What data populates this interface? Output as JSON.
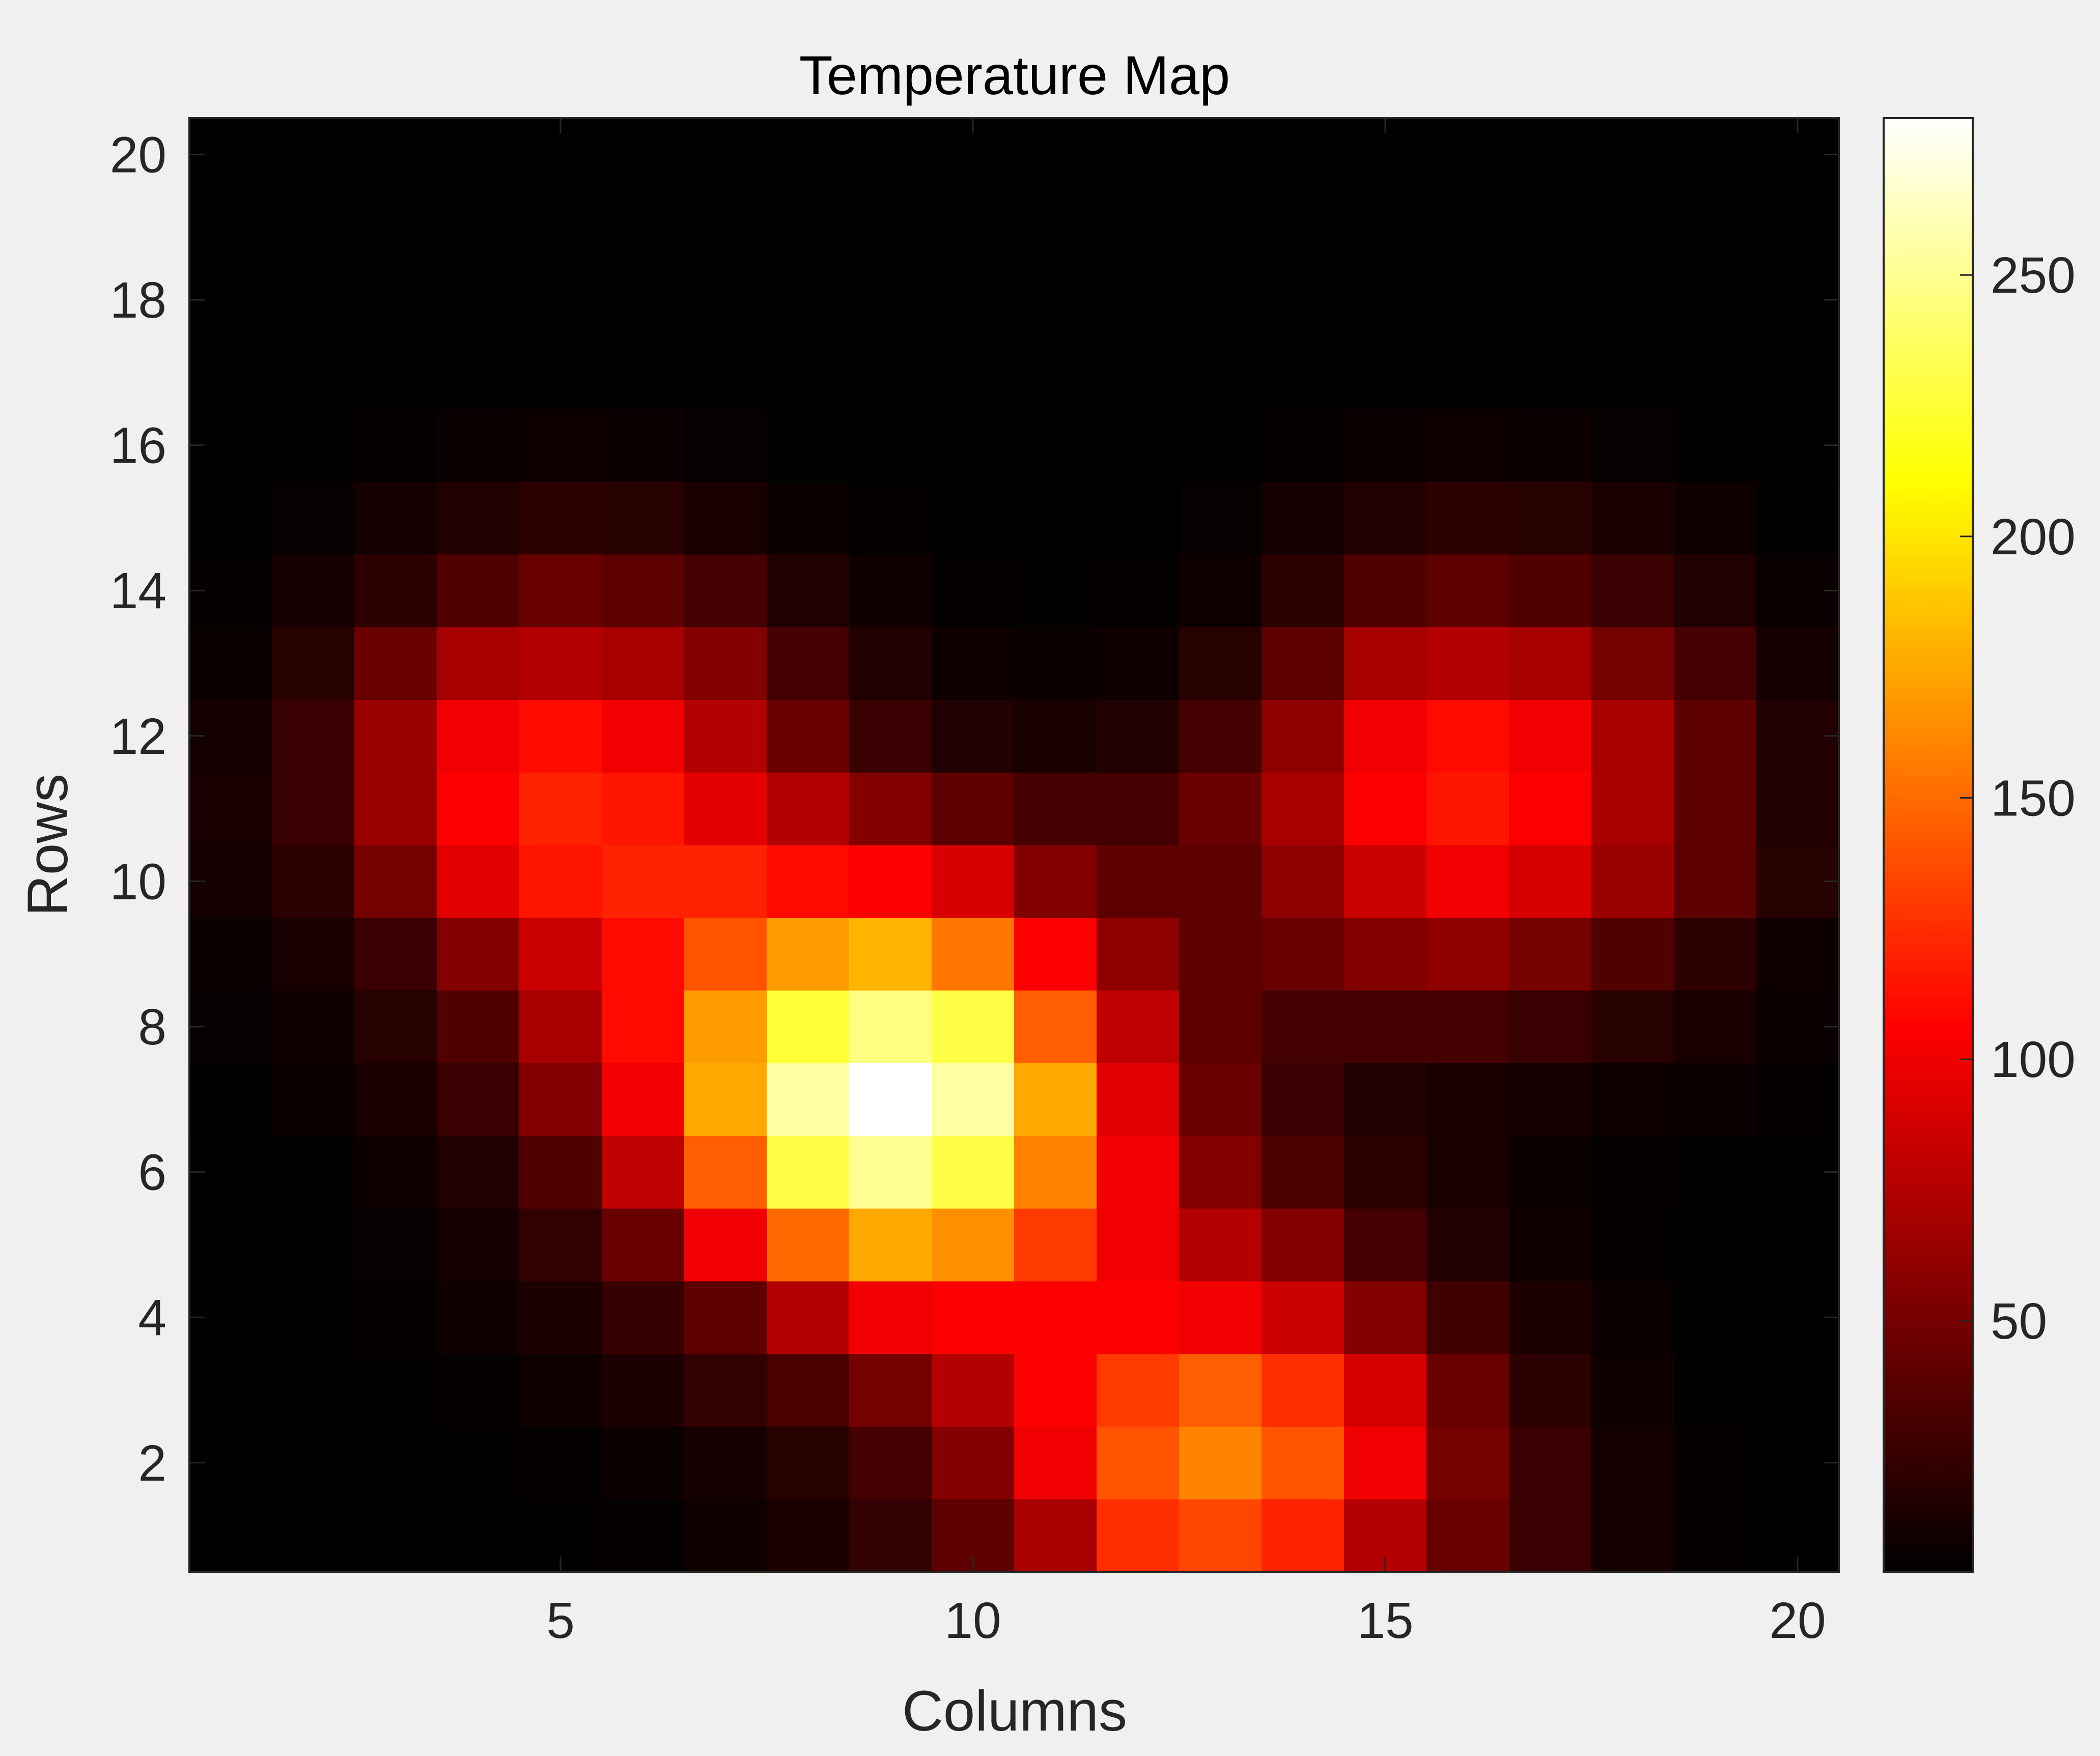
{
  "chart_data": {
    "type": "heatmap",
    "title": "Temperature Map",
    "xlabel": "Columns",
    "ylabel": "Rows",
    "colormap": "hot",
    "x": [
      1,
      2,
      3,
      4,
      5,
      6,
      7,
      8,
      9,
      10,
      11,
      12,
      13,
      14,
      15,
      16,
      17,
      18,
      19,
      20
    ],
    "y": [
      1,
      2,
      3,
      4,
      5,
      6,
      7,
      8,
      9,
      10,
      11,
      12,
      13,
      14,
      15,
      16,
      17,
      18,
      19,
      20
    ],
    "xlim": [
      0.5,
      20.5
    ],
    "ylim": [
      0.5,
      20.5
    ],
    "y_direction": "normal",
    "x_ticks": [
      5,
      10,
      15,
      20
    ],
    "y_ticks": [
      2,
      4,
      6,
      8,
      10,
      12,
      14,
      16,
      18,
      20
    ],
    "color_limits": [
      2,
      280
    ],
    "colorbar_ticks": [
      50,
      100,
      150,
      200,
      250
    ],
    "values": [
      [
        2,
        2,
        2,
        2,
        3,
        4,
        8,
        12,
        22,
        40,
        70,
        125,
        135,
        120,
        75,
        45,
        25,
        10,
        4,
        2
      ],
      [
        2,
        2,
        2,
        3,
        4,
        6,
        10,
        18,
        30,
        55,
        100,
        140,
        160,
        140,
        100,
        50,
        25,
        10,
        4,
        2
      ],
      [
        2,
        2,
        3,
        4,
        8,
        14,
        22,
        32,
        50,
        75,
        105,
        130,
        145,
        125,
        90,
        45,
        20,
        8,
        3,
        2
      ],
      [
        2,
        3,
        4,
        8,
        14,
        24,
        40,
        75,
        100,
        105,
        105,
        105,
        100,
        85,
        55,
        28,
        14,
        6,
        3,
        2
      ],
      [
        2,
        3,
        5,
        10,
        22,
        45,
        100,
        150,
        175,
        165,
        130,
        100,
        75,
        55,
        30,
        16,
        8,
        4,
        2,
        2
      ],
      [
        2,
        3,
        8,
        15,
        35,
        80,
        145,
        230,
        250,
        230,
        160,
        100,
        55,
        32,
        20,
        12,
        6,
        4,
        3,
        2
      ],
      [
        3,
        6,
        12,
        25,
        55,
        100,
        175,
        255,
        280,
        255,
        175,
        95,
        45,
        25,
        15,
        12,
        10,
        8,
        6,
        4
      ],
      [
        5,
        8,
        18,
        35,
        70,
        110,
        170,
        225,
        245,
        230,
        145,
        80,
        40,
        30,
        30,
        30,
        25,
        18,
        12,
        6
      ],
      [
        6,
        12,
        25,
        55,
        85,
        110,
        140,
        170,
        180,
        155,
        105,
        60,
        40,
        45,
        55,
        60,
        50,
        35,
        20,
        8
      ],
      [
        10,
        20,
        50,
        95,
        115,
        120,
        120,
        110,
        105,
        90,
        55,
        40,
        40,
        60,
        85,
        100,
        90,
        65,
        40,
        18
      ],
      [
        12,
        25,
        65,
        105,
        120,
        115,
        95,
        75,
        55,
        40,
        30,
        30,
        45,
        70,
        105,
        115,
        105,
        70,
        40,
        15
      ],
      [
        10,
        25,
        65,
        100,
        110,
        100,
        75,
        45,
        25,
        15,
        12,
        15,
        30,
        60,
        100,
        110,
        100,
        70,
        40,
        15
      ],
      [
        6,
        18,
        45,
        70,
        75,
        70,
        55,
        30,
        15,
        8,
        6,
        8,
        18,
        40,
        70,
        75,
        70,
        50,
        30,
        10
      ],
      [
        4,
        10,
        20,
        35,
        45,
        40,
        30,
        15,
        8,
        4,
        3,
        4,
        8,
        20,
        35,
        40,
        35,
        25,
        15,
        6
      ],
      [
        2,
        5,
        10,
        16,
        20,
        18,
        12,
        6,
        4,
        2,
        2,
        2,
        5,
        10,
        16,
        20,
        18,
        12,
        8,
        3
      ],
      [
        2,
        2,
        4,
        6,
        8,
        7,
        5,
        3,
        2,
        2,
        2,
        2,
        2,
        4,
        6,
        8,
        7,
        5,
        3,
        2
      ],
      [
        2,
        2,
        2,
        3,
        3,
        3,
        2,
        2,
        2,
        2,
        2,
        2,
        2,
        2,
        3,
        3,
        3,
        2,
        2,
        2
      ],
      [
        2,
        2,
        2,
        2,
        2,
        2,
        2,
        2,
        2,
        2,
        2,
        2,
        2,
        2,
        2,
        2,
        2,
        2,
        2,
        2
      ],
      [
        2,
        2,
        2,
        2,
        2,
        2,
        2,
        2,
        2,
        2,
        2,
        2,
        2,
        2,
        2,
        2,
        2,
        2,
        2,
        2
      ],
      [
        2,
        2,
        2,
        2,
        2,
        2,
        2,
        2,
        2,
        2,
        2,
        2,
        2,
        2,
        2,
        2,
        2,
        2,
        2,
        2
      ]
    ]
  },
  "colors": {
    "figure_background": "#f0f0f0",
    "axis_line": "#262626",
    "text": "#262626",
    "title": "#000000"
  }
}
